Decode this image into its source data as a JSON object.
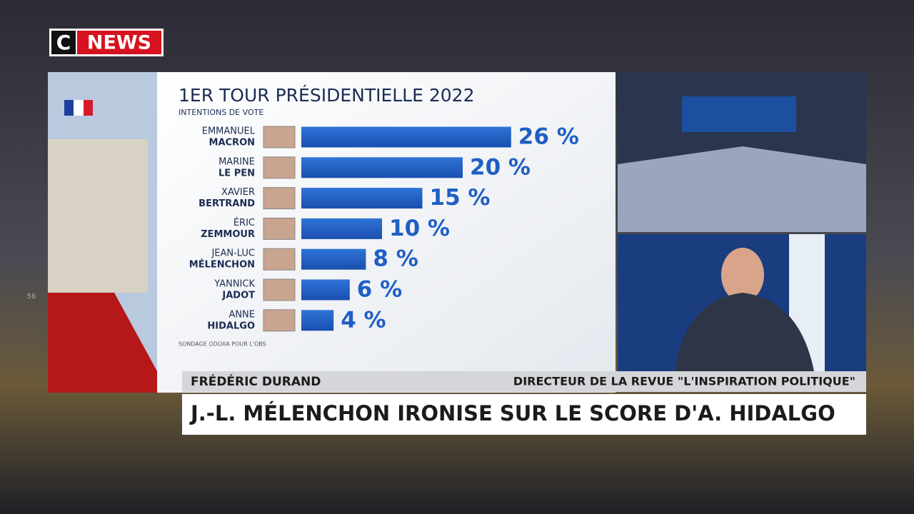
{
  "chart_data": {
    "type": "bar",
    "title": "1ER TOUR PRÉSIDENTIELLE 2022",
    "subtitle": "INTENTIONS DE VOTE",
    "first_names": [
      "EMMANUEL",
      "MARINE",
      "XAVIER",
      "ÉRIC",
      "JEAN-LUC",
      "YANNICK",
      "ANNE"
    ],
    "categories": [
      "MACRON",
      "LE PEN",
      "BERTRAND",
      "ZEMMOUR",
      "MÉLENCHON",
      "JADOT",
      "HIDALGO"
    ],
    "values": [
      26,
      20,
      15,
      10,
      8,
      6,
      4
    ],
    "value_labels": [
      "26 %",
      "20 %",
      "15 %",
      "10 %",
      "8 %",
      "6 %",
      "4 %"
    ],
    "color": "#1f5fc4",
    "source": "SONDAGE ODOXA POUR L'OBS"
  },
  "broadcast": {
    "logo_c": "C",
    "logo_news": "NEWS",
    "guest_name": "FRÉDÉRIC DURAND",
    "guest_title": "DIRECTEUR DE LA REVUE \"L'INSPIRATION POLITIQUE\"",
    "headline": "J.-L. MÉLENCHON IRONISE SUR LE SCORE D'A. HIDALGO",
    "side_number": "56"
  }
}
